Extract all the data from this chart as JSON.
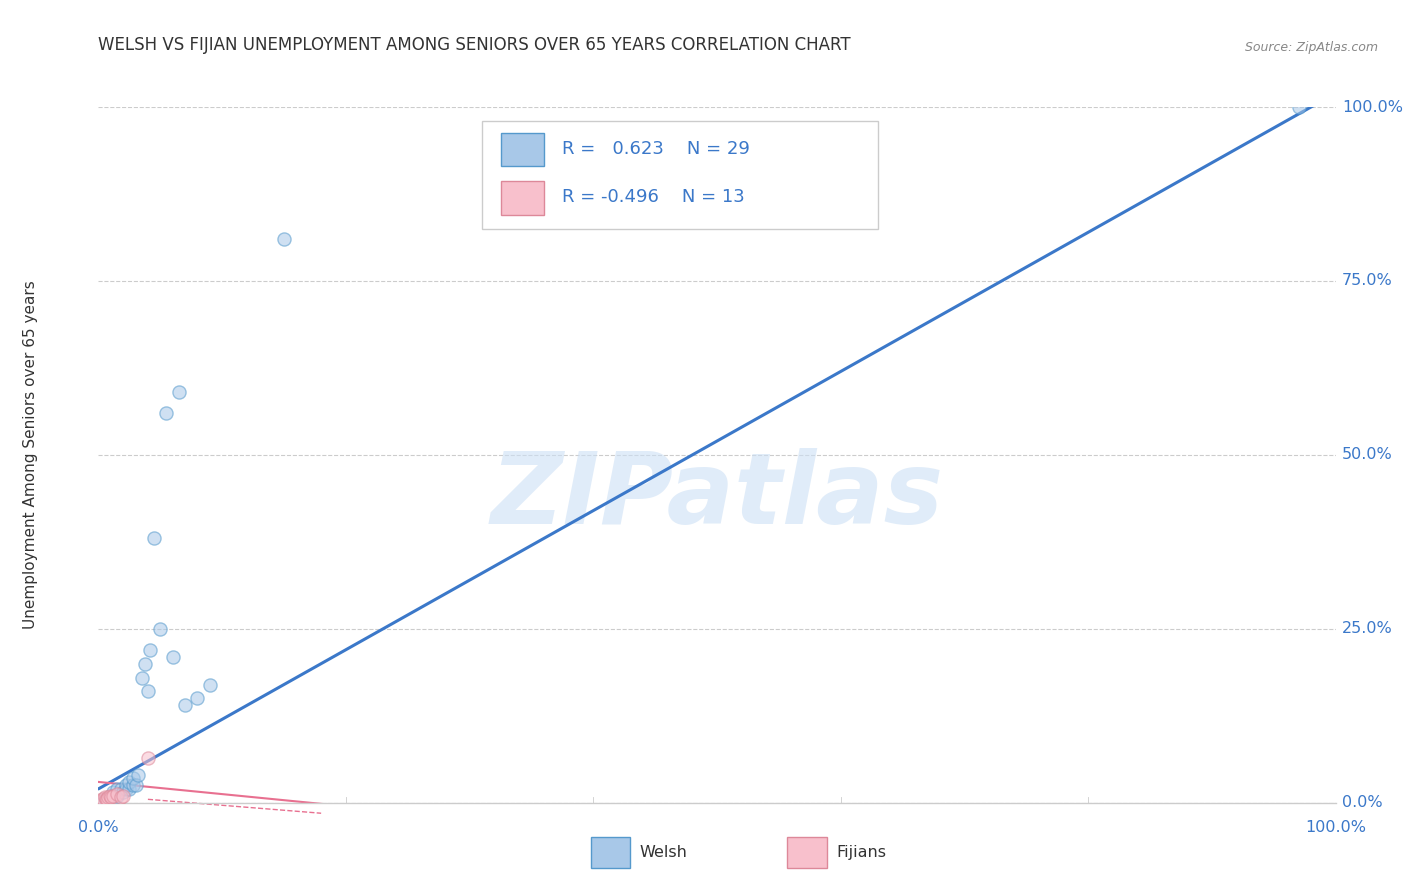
{
  "title": "WELSH VS FIJIAN UNEMPLOYMENT AMONG SENIORS OVER 65 YEARS CORRELATION CHART",
  "source": "Source: ZipAtlas.com",
  "ylabel": "Unemployment Among Seniors over 65 years",
  "watermark": "ZIPatlas",
  "legend_r_welsh": "0.623",
  "legend_n_welsh": "29",
  "legend_r_fijian": "-0.496",
  "legend_n_fijian": "13",
  "welsh_color_fill": "#a8c8e8",
  "welsh_color_edge": "#5599cc",
  "fijian_color_fill": "#f8c0cc",
  "fijian_color_edge": "#dd8899",
  "welsh_scatter_x": [
    0.005,
    0.01,
    0.012,
    0.015,
    0.015,
    0.018,
    0.02,
    0.022,
    0.022,
    0.025,
    0.025,
    0.028,
    0.028,
    0.03,
    0.032,
    0.035,
    0.038,
    0.04,
    0.042,
    0.045,
    0.05,
    0.055,
    0.06,
    0.065,
    0.07,
    0.08,
    0.09,
    0.15,
    0.97
  ],
  "welsh_scatter_y": [
    0.005,
    0.01,
    0.015,
    0.01,
    0.02,
    0.02,
    0.015,
    0.02,
    0.025,
    0.02,
    0.03,
    0.025,
    0.035,
    0.025,
    0.04,
    0.18,
    0.2,
    0.16,
    0.22,
    0.38,
    0.25,
    0.56,
    0.21,
    0.59,
    0.14,
    0.15,
    0.17,
    0.81,
    1.0
  ],
  "fijian_scatter_x": [
    0.003,
    0.004,
    0.005,
    0.006,
    0.007,
    0.008,
    0.009,
    0.01,
    0.012,
    0.015,
    0.018,
    0.02,
    0.04
  ],
  "fijian_scatter_y": [
    0.005,
    0.005,
    0.008,
    0.006,
    0.005,
    0.008,
    0.01,
    0.008,
    0.01,
    0.012,
    0.008,
    0.01,
    0.065
  ],
  "welsh_line_x": [
    0.0,
    1.0
  ],
  "welsh_line_y": [
    0.02,
    1.02
  ],
  "fijian_line_x": [
    0.0,
    0.2
  ],
  "fijian_line_y": [
    0.03,
    -0.005
  ],
  "xtick_positions": [
    0.0,
    0.2,
    0.4,
    0.6,
    0.8,
    1.0
  ],
  "xtick_labels": [
    "0.0%",
    "",
    "",
    "",
    "",
    "100.0%"
  ],
  "ytick_positions": [
    0.0,
    0.25,
    0.5,
    0.75,
    1.0
  ],
  "ytick_labels": [
    "0.0%",
    "25.0%",
    "50.0%",
    "75.0%",
    "100.0%"
  ],
  "background_color": "#ffffff",
  "grid_color": "#cccccc",
  "line_blue": "#3b78c9",
  "line_pink": "#e87090",
  "axis_label_color": "#3b78c9",
  "title_color": "#333333",
  "marker_size": 90,
  "marker_alpha": 0.55,
  "marker_linewidth": 1.0
}
